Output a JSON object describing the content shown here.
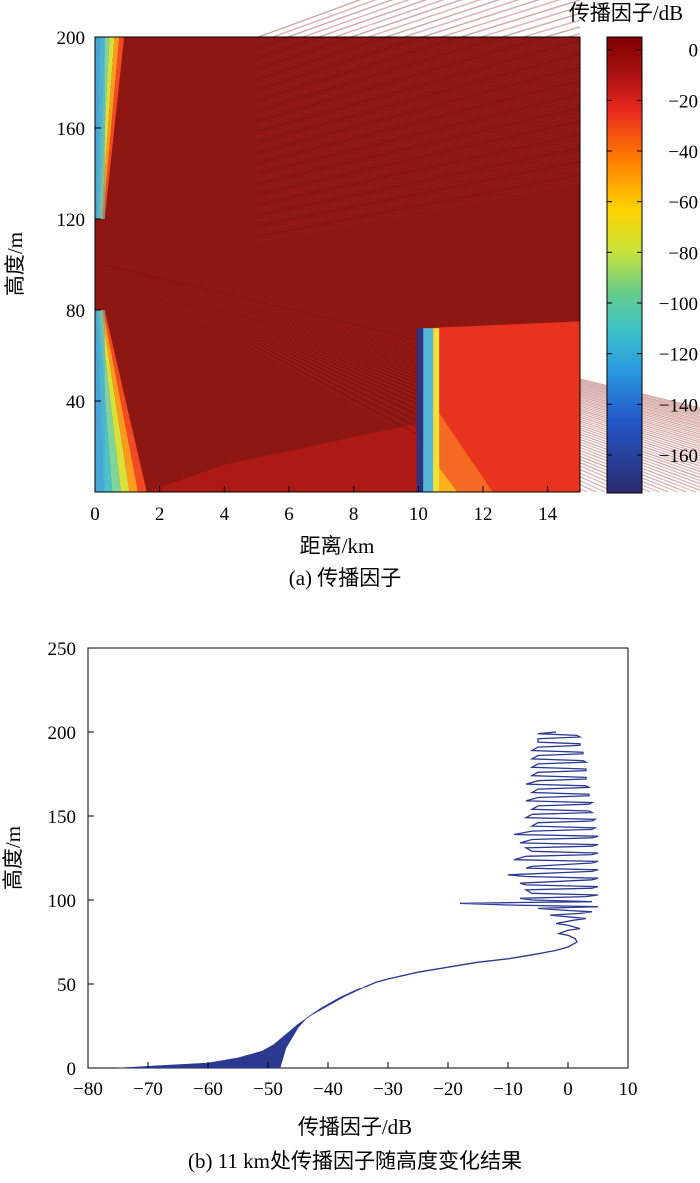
{
  "chart_data": [
    {
      "type": "heatmap",
      "caption": "(a) 传播因子",
      "xlabel": "距离/km",
      "ylabel": "高度/m",
      "colorbar_label": "传播因子/dB",
      "xlim": [
        0,
        15
      ],
      "ylim": [
        0,
        200
      ],
      "clim": [
        -175,
        5
      ],
      "colormap": "jet",
      "x_ticks": [
        {
          "value": 0,
          "label": "0"
        },
        {
          "value": 2,
          "label": "2"
        },
        {
          "value": 4,
          "label": "4"
        },
        {
          "value": 6,
          "label": "6"
        },
        {
          "value": 8,
          "label": "8"
        },
        {
          "value": 10,
          "label": "10"
        },
        {
          "value": 12,
          "label": "12"
        },
        {
          "value": 14,
          "label": "14"
        }
      ],
      "y_ticks": [
        {
          "value": 40,
          "label": "40"
        },
        {
          "value": 80,
          "label": "80"
        },
        {
          "value": 120,
          "label": "120"
        },
        {
          "value": 160,
          "label": "160"
        },
        {
          "value": 200,
          "label": "200"
        }
      ],
      "colorbar_ticks": [
        {
          "value": 0,
          "label": "0"
        },
        {
          "value": -20,
          "label": "−20"
        },
        {
          "value": -40,
          "label": "−40"
        },
        {
          "value": -60,
          "label": "−60"
        },
        {
          "value": -80,
          "label": "−80"
        },
        {
          "value": -100,
          "label": "−100"
        },
        {
          "value": -120,
          "label": "−120"
        },
        {
          "value": -140,
          "label": "−140"
        },
        {
          "value": -160,
          "label": "−160"
        }
      ],
      "field": {
        "source_x_km": 0.3,
        "source_height_m": 100,
        "beam_lower_start_height_m": 80,
        "beam_upper_start_height_m": 120,
        "beam_lower_end": {
          "x_km": 1.6,
          "height_m": 0
        },
        "beam_upper_end": {
          "x_km": 0.9,
          "height_m": 200
        },
        "obstacle": {
          "x_start_km": 9.95,
          "x_end_km": 10.15,
          "top_height_m": 72,
          "value_db": -175
        },
        "shadow_region_value_db": -25,
        "background_value_db": 0
      }
    },
    {
      "type": "line",
      "caption": "(b) 11 km处传播因子随高度变化结果",
      "xlabel": "传播因子/dB",
      "ylabel": "高度/m",
      "xlim": [
        -80,
        10
      ],
      "ylim": [
        0,
        250
      ],
      "x_ticks": [
        {
          "value": -80,
          "label": "−80"
        },
        {
          "value": -70,
          "label": "−70"
        },
        {
          "value": -60,
          "label": "−60"
        },
        {
          "value": -50,
          "label": "−50"
        },
        {
          "value": -40,
          "label": "−40"
        },
        {
          "value": -30,
          "label": "−30"
        },
        {
          "value": -20,
          "label": "−20"
        },
        {
          "value": -10,
          "label": "−10"
        },
        {
          "value": 0,
          "label": "0"
        },
        {
          "value": 10,
          "label": "10"
        }
      ],
      "y_ticks": [
        {
          "value": 0,
          "label": "0"
        },
        {
          "value": 50,
          "label": "50"
        },
        {
          "value": 100,
          "label": "100"
        },
        {
          "value": 150,
          "label": "150"
        },
        {
          "value": 200,
          "label": "200"
        },
        {
          "value": 250,
          "label": "250"
        }
      ],
      "line_color": "#2b3990",
      "filled_band_left": [
        [
          -75,
          0
        ],
        [
          -70,
          1
        ],
        [
          -60,
          3
        ],
        [
          -55,
          6
        ],
        [
          -51,
          10
        ],
        [
          -49,
          14
        ],
        [
          -47,
          20
        ],
        [
          -45,
          26
        ],
        [
          -43,
          31
        ],
        [
          -40,
          37
        ],
        [
          -37,
          43
        ],
        [
          -34,
          48
        ]
      ],
      "filled_band_right": [
        [
          -48,
          0
        ],
        [
          -47.5,
          6
        ],
        [
          -47,
          12
        ],
        [
          -46,
          18
        ],
        [
          -45,
          24
        ],
        [
          -43.5,
          30
        ],
        [
          -41,
          36
        ],
        [
          -38,
          42
        ],
        [
          -35,
          47
        ],
        [
          -34,
          48
        ]
      ],
      "series": [
        {
          "points": [
            [
              -34,
              48
            ],
            [
              -32,
              51
            ],
            [
              -30,
              53
            ],
            [
              -25,
              57
            ],
            [
              -20,
              60
            ],
            [
              -15,
              63
            ],
            [
              -10,
              65
            ],
            [
              -5,
              68
            ],
            [
              -2,
              70
            ],
            [
              0,
              72
            ],
            [
              1,
              74
            ],
            [
              1.5,
              75
            ],
            [
              1.2,
              77
            ],
            [
              0,
              79
            ],
            [
              -1.5,
              80
            ],
            [
              0,
              82
            ],
            [
              2,
              83
            ],
            [
              0,
              85
            ],
            [
              -2,
              86
            ],
            [
              1,
              88
            ],
            [
              3,
              89
            ],
            [
              0,
              90
            ],
            [
              -3,
              91
            ],
            [
              2,
              92
            ],
            [
              4,
              93
            ],
            [
              -1,
              94
            ],
            [
              -5,
              95
            ],
            [
              5,
              96
            ],
            [
              -10,
              97
            ],
            [
              -18,
              98
            ],
            [
              -8,
              98.5
            ],
            [
              4,
              99
            ],
            [
              -6,
              100
            ],
            [
              -8,
              101
            ],
            [
              3,
              102
            ],
            [
              5,
              103
            ],
            [
              -6,
              104
            ],
            [
              -7,
              106
            ],
            [
              4,
              107
            ],
            [
              5,
              108
            ],
            [
              -7,
              109
            ],
            [
              -8,
              110
            ],
            [
              4,
              112
            ],
            [
              5,
              113
            ],
            [
              -7,
              114
            ],
            [
              -10,
              115
            ],
            [
              4,
              117
            ],
            [
              5,
              118
            ],
            [
              -7,
              119
            ],
            [
              -6,
              120
            ],
            [
              4,
              122
            ],
            [
              5,
              123
            ],
            [
              -9,
              124
            ],
            [
              -7,
              126
            ],
            [
              4,
              127
            ],
            [
              5,
              128
            ],
            [
              -6,
              129
            ],
            [
              -7,
              131
            ],
            [
              4,
              132
            ],
            [
              5,
              133
            ],
            [
              -8,
              134
            ],
            [
              -6,
              136
            ],
            [
              4,
              137
            ],
            [
              5,
              138
            ],
            [
              -9,
              139
            ],
            [
              -6,
              141
            ],
            [
              4,
              142
            ],
            [
              4.5,
              143
            ],
            [
              -6,
              144
            ],
            [
              -5,
              146
            ],
            [
              4,
              147
            ],
            [
              4.5,
              148
            ],
            [
              -7,
              149
            ],
            [
              -6,
              151
            ],
            [
              4,
              152
            ],
            [
              3.5,
              153
            ],
            [
              -6,
              154
            ],
            [
              -5,
              156
            ],
            [
              3.5,
              157
            ],
            [
              4,
              158
            ],
            [
              -7,
              159
            ],
            [
              -5,
              161
            ],
            [
              3.5,
              162
            ],
            [
              3.5,
              163
            ],
            [
              -6,
              164
            ],
            [
              -5,
              166
            ],
            [
              3.5,
              167
            ],
            [
              3,
              168
            ],
            [
              -7,
              169
            ],
            [
              -5,
              171
            ],
            [
              3,
              172
            ],
            [
              3,
              173
            ],
            [
              -6,
              174
            ],
            [
              -5,
              176
            ],
            [
              3,
              177
            ],
            [
              3,
              178
            ],
            [
              -6,
              179
            ],
            [
              -5,
              181
            ],
            [
              3,
              182
            ],
            [
              2.5,
              183
            ],
            [
              -6,
              184
            ],
            [
              -5,
              186
            ],
            [
              2.5,
              187
            ],
            [
              2.5,
              188
            ],
            [
              -6,
              189
            ],
            [
              -5,
              191
            ],
            [
              2,
              192
            ],
            [
              2,
              193
            ],
            [
              -5,
              194
            ],
            [
              -5,
              196
            ],
            [
              2,
              197
            ],
            [
              1.5,
              198
            ],
            [
              -5,
              199
            ],
            [
              -2,
              200
            ]
          ]
        }
      ]
    }
  ]
}
